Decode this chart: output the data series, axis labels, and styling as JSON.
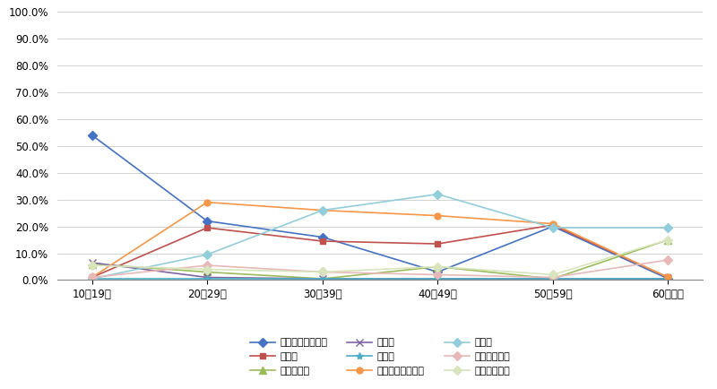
{
  "categories": [
    "10〜19歳",
    "20〜29歳",
    "30〜39歳",
    "40〜49歳",
    "50〜59歳",
    "60歳以上"
  ],
  "series": [
    {
      "label": "就職・転職・転業",
      "color": "#4472C4",
      "marker": "D",
      "markersize": 5,
      "values": [
        54.0,
        22.0,
        16.0,
        3.0,
        20.0,
        0.5
      ]
    },
    {
      "label": "転　勤",
      "color": "#C0504D",
      "marker": "s",
      "markersize": 5,
      "values": [
        1.0,
        19.5,
        14.5,
        13.5,
        20.5,
        1.0
      ]
    },
    {
      "label": "退職・廃業",
      "color": "#9BBB59",
      "marker": "^",
      "markersize": 6,
      "values": [
        6.0,
        3.0,
        0.5,
        5.0,
        0.5,
        15.0
      ]
    },
    {
      "label": "就　学",
      "color": "#8064A2",
      "marker": "x",
      "markersize": 6,
      "values": [
        6.5,
        1.0,
        0.5,
        0.5,
        0.5,
        0.5
      ]
    },
    {
      "label": "卒　業",
      "color": "#4BACC6",
      "marker": "*",
      "markersize": 6,
      "values": [
        0.5,
        0.5,
        0.5,
        0.5,
        0.5,
        0.5
      ]
    },
    {
      "label": "結婚・離婚・縁組",
      "color": "#F79646",
      "marker": "o",
      "markersize": 5,
      "values": [
        1.0,
        29.0,
        26.0,
        24.0,
        21.0,
        1.0
      ]
    },
    {
      "label": "住　宅",
      "color": "#92CDDC",
      "marker": "D",
      "markersize": 5,
      "values": [
        0.5,
        9.5,
        26.0,
        32.0,
        19.5,
        19.5
      ]
    },
    {
      "label": "交通の利便性",
      "color": "#E6B9B8",
      "marker": "D",
      "markersize": 5,
      "values": [
        1.0,
        5.5,
        3.0,
        2.0,
        1.0,
        7.5
      ]
    },
    {
      "label": "生活の利便性",
      "color": "#D7E4BC",
      "marker": "D",
      "markersize": 5,
      "values": [
        5.5,
        4.0,
        3.0,
        5.0,
        2.0,
        15.0
      ]
    }
  ],
  "ylim": [
    0.0,
    100.0
  ],
  "yticks": [
    0.0,
    10.0,
    20.0,
    30.0,
    40.0,
    50.0,
    60.0,
    70.0,
    80.0,
    90.0,
    100.0
  ],
  "background_color": "#FFFFFF",
  "plot_bg_color": "#FFFFFF",
  "grid_color": "#C0C0C0"
}
